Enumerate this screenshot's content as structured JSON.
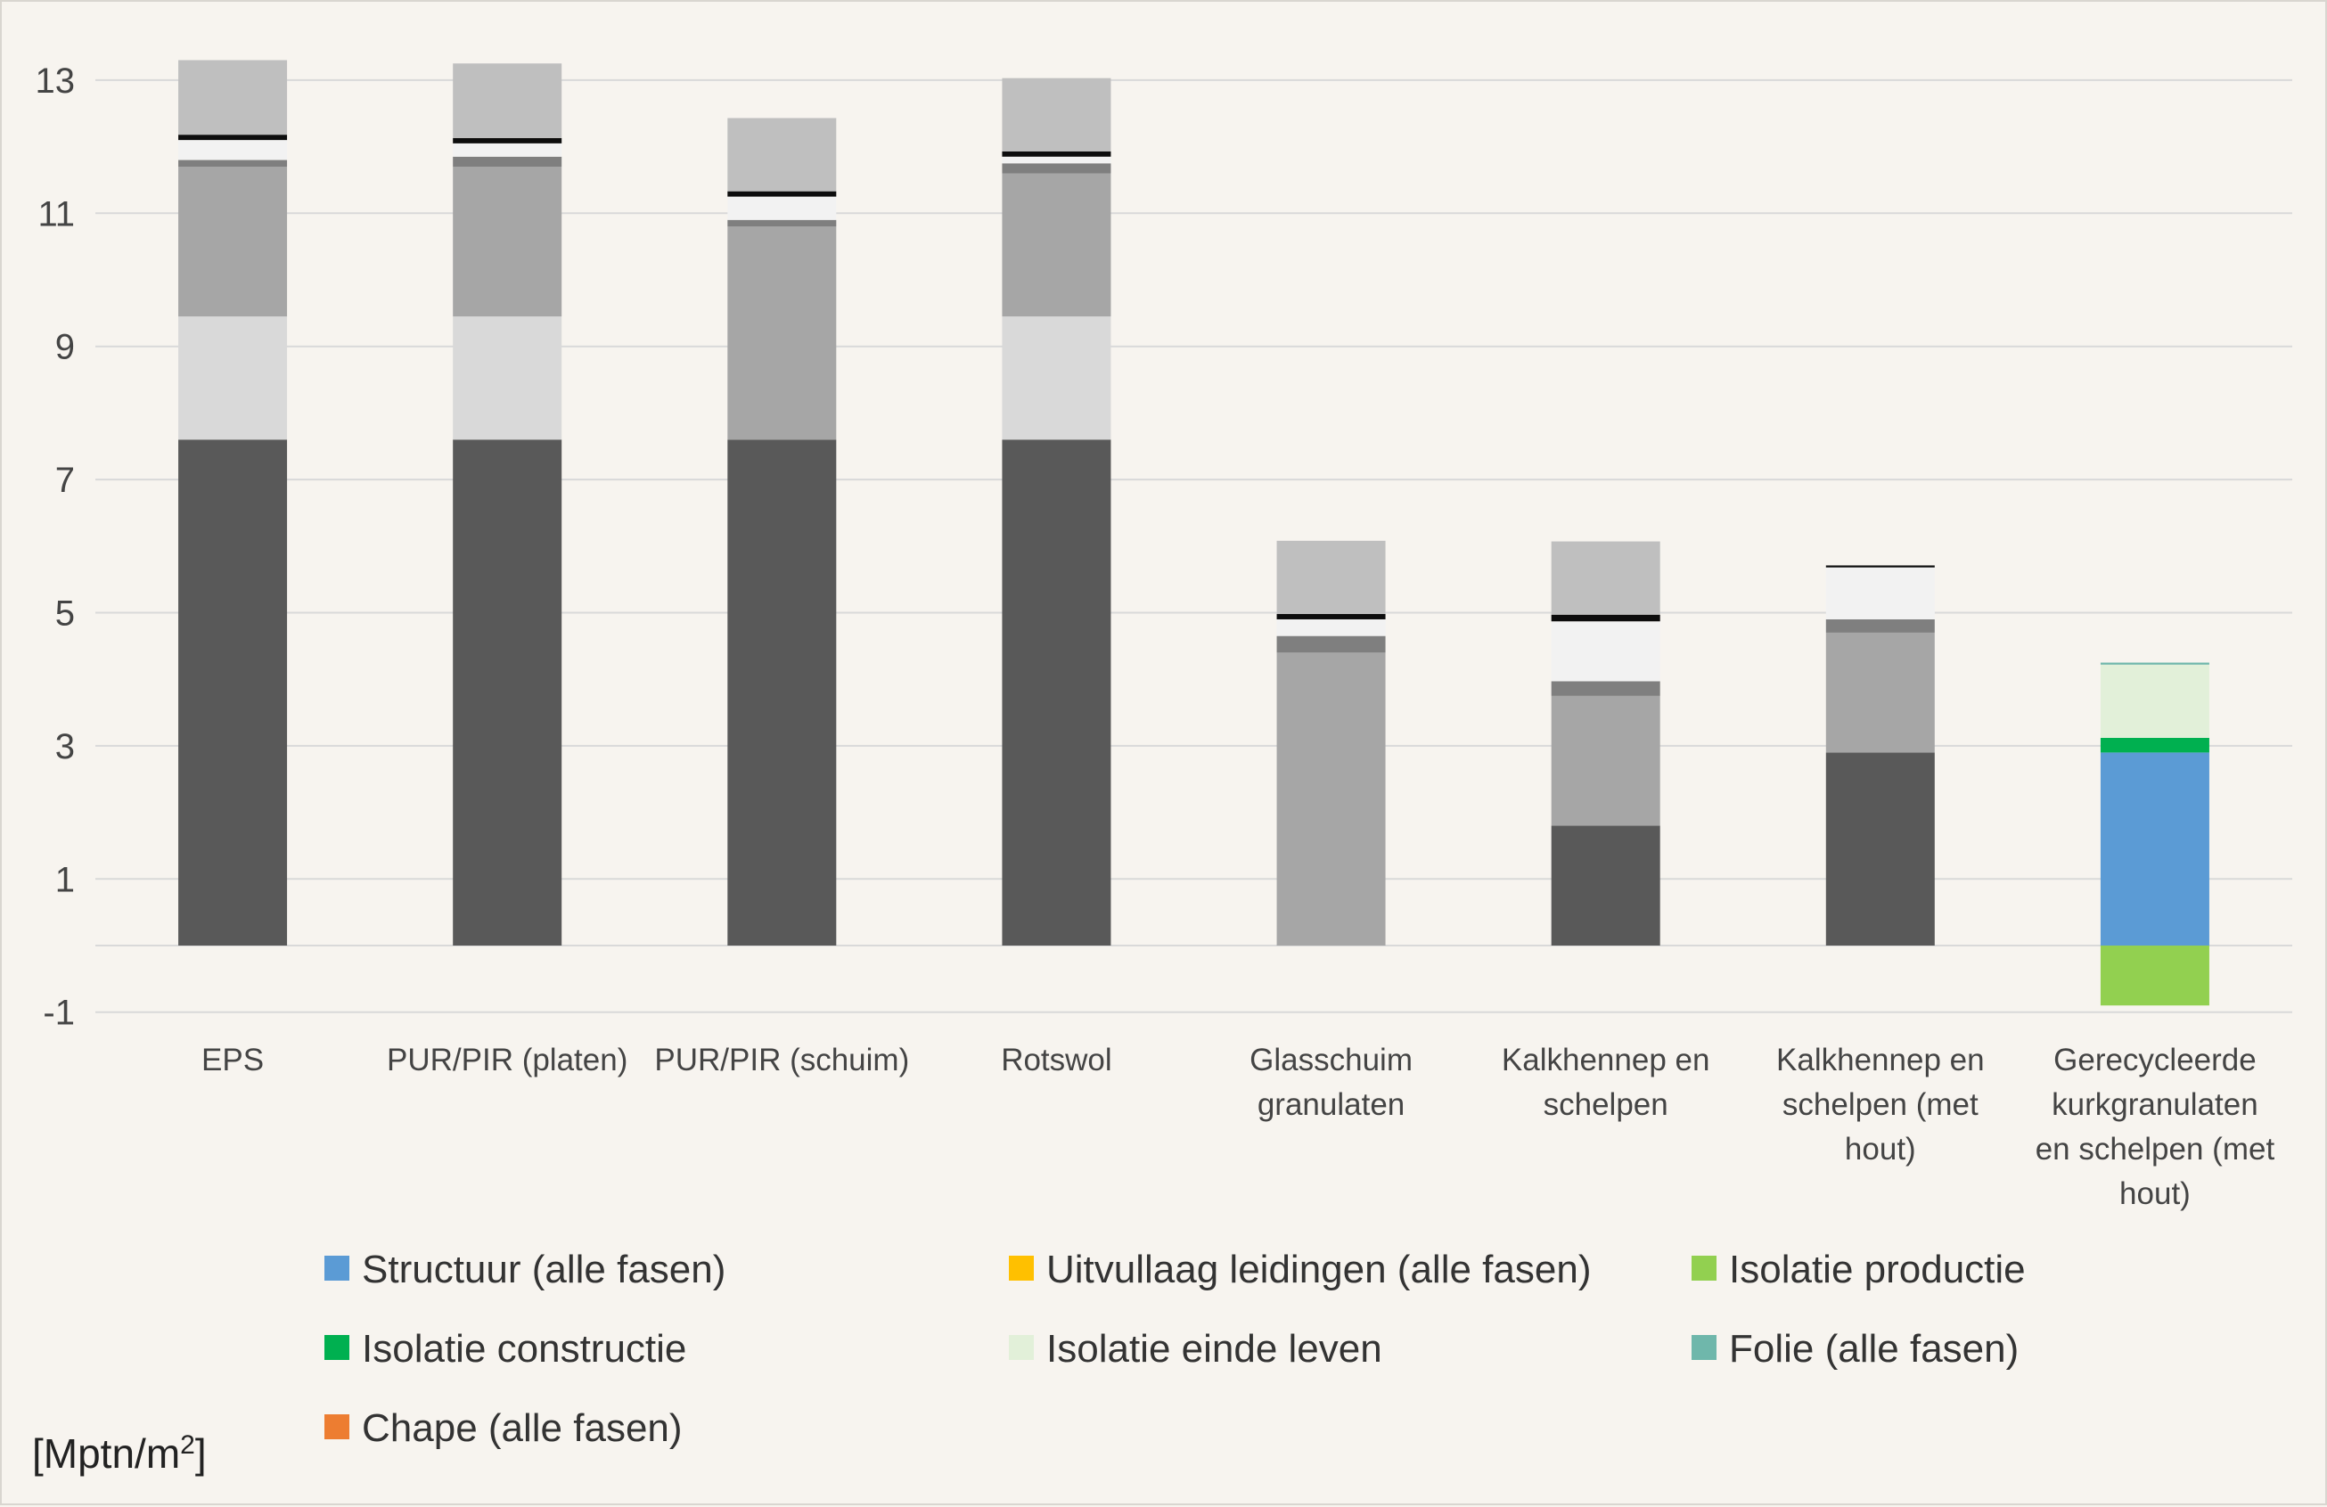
{
  "chart_data": {
    "type": "bar",
    "stacked": true,
    "unit_label": "[Mptn/m",
    "unit_superscript": "2",
    "unit_close": "]",
    "ylim": [
      -1,
      13.5
    ],
    "yticks": [
      13,
      11,
      9,
      7,
      5,
      3,
      1,
      -1
    ],
    "grid": true,
    "legend_position": "bottom",
    "categories": [
      [
        "EPS"
      ],
      [
        "PUR/PIR (platen)"
      ],
      [
        "PUR/PIR (schuim)"
      ],
      [
        "Rotswol"
      ],
      [
        "Glasschuim",
        "granulaten"
      ],
      [
        "Kalkhennep en",
        "schelpen"
      ],
      [
        "Kalkhennep en",
        "schelpen (met",
        "hout)"
      ],
      [
        "Gerecycleerde",
        "kurkgranulaten",
        "en schelpen (met",
        "hout)"
      ]
    ],
    "legend": [
      {
        "name": "Structuur (alle fasen)",
        "color": "#5b9bd5"
      },
      {
        "name": "Uitvullaag leidingen (alle fasen)",
        "color": "#ffc000"
      },
      {
        "name": "Isolatie productie",
        "color": "#92d050"
      },
      {
        "name": "Isolatie constructie",
        "color": "#00b050"
      },
      {
        "name": "Isolatie einde leven",
        "color": "#e2f0d9"
      },
      {
        "name": "Folie (alle fasen)",
        "color": "#6fb7ab"
      },
      {
        "name": "Chape (alle fasen)",
        "color": "#ed7d31"
      }
    ],
    "series": [
      {
        "key": "structuur",
        "color_gray": "#595959",
        "color": "#5b9bd5",
        "values": [
          7.6,
          7.6,
          7.6,
          7.6,
          0,
          1.8,
          2.9,
          2.9
        ]
      },
      {
        "key": "uitvullaag",
        "color_gray": "#d9d9d9",
        "color": "#ffc000",
        "values": [
          1.85,
          1.85,
          0,
          1.85,
          0,
          0,
          0,
          0
        ]
      },
      {
        "key": "isolatie_productie",
        "color_gray": "#a6a6a6",
        "color": "#92d050",
        "values": [
          2.25,
          2.25,
          3.2,
          2.15,
          4.4,
          1.95,
          1.8,
          -0.9
        ]
      },
      {
        "key": "isolatie_constructie",
        "color_gray": "#7f7f7f",
        "color": "#00b050",
        "values": [
          0.1,
          0.15,
          0.1,
          0.15,
          0.25,
          0.22,
          0.2,
          0.22
        ]
      },
      {
        "key": "isolatie_einde_leven",
        "color_gray": "#f2f2f2",
        "color": "#e2f0d9",
        "values": [
          0.3,
          0.2,
          0.35,
          0.1,
          0.25,
          0.9,
          0.78,
          1.1
        ]
      },
      {
        "key": "folie",
        "color_gray": "#0d0d0d",
        "color": "#6fb7ab",
        "values": [
          0.08,
          0.08,
          0.08,
          0.08,
          0.08,
          0.1,
          0.03,
          0.03
        ]
      },
      {
        "key": "chape",
        "color_gray": "#bfbfbf",
        "color": "#ed7d31",
        "values": [
          1.12,
          1.12,
          1.1,
          1.1,
          1.1,
          1.1,
          0,
          0
        ]
      }
    ],
    "gray_categories": [
      0,
      1,
      2,
      3,
      4,
      5,
      6
    ],
    "color_categories": [
      7
    ]
  }
}
